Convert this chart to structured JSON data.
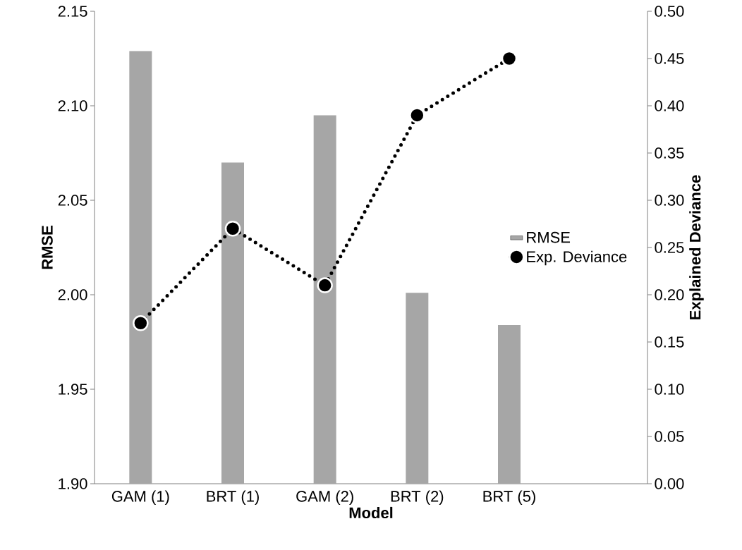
{
  "chart_data": {
    "type": "bar",
    "xlabel": "Model",
    "ylabel": "RMSE",
    "y2label": "Explained Deviance",
    "categories": [
      "GAM (1)",
      "BRT (1)",
      "GAM (2)",
      "BRT (2)",
      "BRT (5)",
      null
    ],
    "series": [
      {
        "name": "RMSE",
        "color": "#a6a6a6",
        "values": [
          2.129,
          2.07,
          2.095,
          2.001,
          1.984,
          null
        ]
      },
      {
        "name": "Exp. Deviance",
        "type": "line",
        "axis": "y2",
        "color": "#000000",
        "marker": "circle",
        "line_style": "dotted",
        "values": [
          0.17,
          0.27,
          0.21,
          0.39,
          0.45,
          null
        ]
      }
    ],
    "ylim": [
      1.9,
      2.15
    ],
    "yticks": [
      {
        "value": 1.9,
        "label": "1.90"
      },
      1.95,
      {
        "value": 2.0,
        "label": "2.00"
      },
      2.05,
      {
        "value": 2.1,
        "label": "2.10"
      },
      2.15
    ],
    "y2lim": [
      0,
      0.5
    ],
    "y2ticks": [
      {
        "value": 0,
        "label": "0.00"
      },
      0.05,
      {
        "value": 0.1,
        "label": "0.10"
      },
      0.15,
      {
        "value": 0.2,
        "label": "0.20"
      },
      0.25,
      {
        "value": 0.3,
        "label": "0.30"
      },
      0.35,
      {
        "value": 0.4,
        "label": "0.40"
      },
      0.45,
      {
        "value": 0.5,
        "label": "0.50"
      }
    ],
    "legend": "right",
    "grid": false
  }
}
